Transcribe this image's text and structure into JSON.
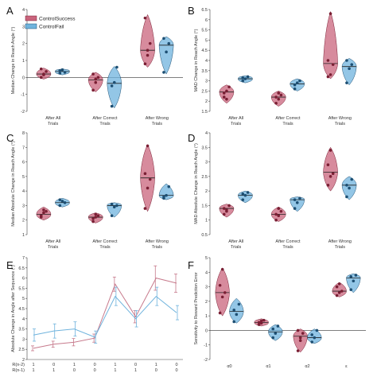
{
  "colors": {
    "success": "#c9647c",
    "success_dark": "#7a1f34",
    "fail": "#6fb3dd",
    "fail_dark": "#1d4f73",
    "line_success": "#c77a8c",
    "line_fail": "#6fb3dd"
  },
  "legend": {
    "success": "ControlSuccess",
    "fail": "ControlFail"
  },
  "chart_data": [
    {
      "id": "A",
      "panel": "A",
      "type": "violin",
      "ylabel": "Median Change in Reach Angle (°)",
      "ylim": [
        -2,
        4
      ],
      "yticks": [
        -2,
        -1,
        0,
        1,
        2,
        3,
        4
      ],
      "categories": [
        "After All Trials",
        "After Correct Trials",
        "After Wrong Trials"
      ],
      "zero_line": true,
      "series": [
        {
          "name": "ControlSuccess",
          "points": [
            [
              0.0,
              0.15,
              0.35,
              0.5,
              0.2
            ],
            [
              -0.75,
              -0.3,
              0.0,
              0.2,
              -0.1
            ],
            [
              0.8,
              1.3,
              2.0,
              3.5,
              1.6
            ]
          ],
          "median": [
            0.2,
            -0.15,
            1.6
          ],
          "range": [
            [
              -0.1,
              0.55
            ],
            [
              -0.85,
              0.3
            ],
            [
              0.6,
              3.7
            ]
          ]
        },
        {
          "name": "ControlFail",
          "points": [
            [
              0.25,
              0.45,
              0.3,
              0.4
            ],
            [
              -1.7,
              -0.3,
              0.6,
              -0.5
            ],
            [
              0.3,
              1.5,
              2.0,
              2.3
            ]
          ],
          "median": [
            0.35,
            -0.35,
            1.9
          ],
          "range": [
            [
              0.15,
              0.5
            ],
            [
              -1.8,
              0.65
            ],
            [
              0.2,
              2.4
            ]
          ]
        }
      ]
    },
    {
      "id": "B",
      "panel": "B",
      "type": "violin",
      "ylabel": "MAD Change in Reach Angle (°)",
      "ylim": [
        1.5,
        6.5
      ],
      "yticks": [
        1.5,
        2,
        2.5,
        3,
        3.5,
        4,
        4.5,
        5,
        5.5,
        6,
        6.5
      ],
      "categories": [
        "After All Trials",
        "After Correct Trials",
        "After Wrong Trials"
      ],
      "series": [
        {
          "name": "ControlSuccess",
          "points": [
            [
              2.2,
              2.5,
              2.7,
              2.4,
              2.1
            ],
            [
              1.9,
              2.1,
              2.3,
              2.2,
              2.4
            ],
            [
              3.2,
              3.3,
              3.8,
              4.0,
              6.3
            ]
          ],
          "median": [
            2.45,
            2.2,
            3.85
          ],
          "range": [
            [
              1.9,
              2.8
            ],
            [
              1.75,
              2.5
            ],
            [
              3.1,
              6.4
            ]
          ]
        },
        {
          "name": "ControlFail",
          "points": [
            [
              3.0,
              3.1,
              3.2,
              3.15
            ],
            [
              2.6,
              2.9,
              3.0,
              2.8
            ],
            [
              2.9,
              3.6,
              3.8,
              4.0
            ]
          ],
          "median": [
            3.1,
            2.85,
            3.7
          ],
          "range": [
            [
              2.9,
              3.25
            ],
            [
              2.5,
              3.1
            ],
            [
              2.8,
              4.1
            ]
          ]
        }
      ]
    },
    {
      "id": "C",
      "panel": "C",
      "type": "violin",
      "ylabel": "Median Absolute Change in Reach Angle (°)",
      "ylim": [
        1,
        8
      ],
      "yticks": [
        1,
        2,
        3,
        4,
        5,
        6,
        7,
        8
      ],
      "categories": [
        "After All Trials",
        "After Correct Trials",
        "After Wrong Trials"
      ],
      "series": [
        {
          "name": "ControlSuccess",
          "points": [
            [
              2.2,
              2.5,
              2.6,
              2.3,
              2.7
            ],
            [
              1.9,
              2.2,
              2.3,
              2.1,
              2.4
            ],
            [
              2.8,
              4.2,
              4.8,
              5.2,
              7.1
            ]
          ],
          "median": [
            2.4,
            2.2,
            4.9
          ],
          "range": [
            [
              2.0,
              2.9
            ],
            [
              1.8,
              2.5
            ],
            [
              2.6,
              7.2
            ]
          ]
        },
        {
          "name": "ControlFail",
          "points": [
            [
              3.0,
              3.3,
              3.2,
              3.4
            ],
            [
              2.3,
              2.9,
              3.0,
              3.1
            ],
            [
              3.5,
              3.7,
              4.3,
              3.6
            ]
          ],
          "median": [
            3.2,
            3.0,
            3.7
          ],
          "range": [
            [
              2.9,
              3.5
            ],
            [
              2.2,
              3.2
            ],
            [
              3.4,
              4.5
            ]
          ]
        }
      ]
    },
    {
      "id": "D",
      "panel": "D",
      "type": "violin",
      "ylabel": "MAD Absolute Change in Reach Angle (°)",
      "ylim": [
        0.5,
        4
      ],
      "yticks": [
        0.5,
        1,
        1.5,
        2,
        2.5,
        3,
        3.5,
        4
      ],
      "categories": [
        "After All Trials",
        "After Correct Trials",
        "After Wrong Trials"
      ],
      "series": [
        {
          "name": "ControlSuccess",
          "points": [
            [
              1.2,
              1.35,
              1.5,
              1.4,
              1.3
            ],
            [
              1.0,
              1.15,
              1.3,
              1.2,
              1.4
            ],
            [
              2.2,
              2.5,
              2.6,
              2.9,
              3.4
            ]
          ],
          "median": [
            1.4,
            1.2,
            2.65
          ],
          "range": [
            [
              1.1,
              1.55
            ],
            [
              0.95,
              1.45
            ],
            [
              2.0,
              3.5
            ]
          ]
        },
        {
          "name": "ControlFail",
          "points": [
            [
              1.7,
              1.85,
              1.95,
              1.9
            ],
            [
              1.4,
              1.6,
              1.75,
              1.7
            ],
            [
              1.8,
              2.1,
              2.4,
              2.2
            ]
          ],
          "median": [
            1.85,
            1.7,
            2.2
          ],
          "range": [
            [
              1.6,
              2.0
            ],
            [
              1.3,
              1.8
            ],
            [
              1.7,
              2.5
            ]
          ]
        }
      ]
    },
    {
      "id": "E",
      "panel": "E",
      "type": "line",
      "ylabel": "Absolute Change in Angle after Sequence (°)",
      "ylim": [
        2,
        7
      ],
      "yticks": [
        2,
        2.5,
        3,
        3.5,
        4,
        4.5,
        5,
        5.5,
        6,
        6.5,
        7
      ],
      "x": [
        1,
        2,
        3,
        4,
        5,
        6,
        7,
        8
      ],
      "row_labels": [
        "R(n-2)",
        "R(n-1)"
      ],
      "rows": [
        [
          "1",
          "0",
          "1",
          "0",
          "1",
          "0",
          "1",
          "0"
        ],
        [
          "1",
          "1",
          "0",
          "0",
          "1",
          "1",
          "0",
          "0"
        ]
      ],
      "series": [
        {
          "name": "ControlSuccess",
          "values": [
            2.55,
            2.75,
            2.85,
            3.05,
            5.7,
            4.1,
            6.0,
            5.75
          ],
          "errors": [
            0.12,
            0.15,
            0.18,
            0.2,
            0.35,
            0.3,
            0.6,
            0.45
          ]
        },
        {
          "name": "ControlFail",
          "values": [
            3.2,
            3.4,
            3.5,
            3.1,
            5.1,
            4.0,
            5.1,
            4.3
          ],
          "errors": [
            0.3,
            0.35,
            0.35,
            0.3,
            0.45,
            0.4,
            0.45,
            0.35
          ]
        }
      ]
    },
    {
      "id": "F",
      "panel": "F",
      "type": "violin",
      "ylabel": "Sensitivity to Reward Prediction Error",
      "ylim": [
        -2,
        5
      ],
      "yticks": [
        -2,
        -1,
        0,
        1,
        2,
        3,
        4,
        5
      ],
      "categories": [
        "α0",
        "α1",
        "α2",
        "ε"
      ],
      "zero_line": true,
      "series": [
        {
          "name": "ControlSuccess",
          "points": [
            [
              1.2,
              2.3,
              2.6,
              3.1,
              4.2
            ],
            [
              0.4,
              0.5,
              0.7,
              0.55,
              0.65
            ],
            [
              -1.4,
              -0.7,
              -0.2,
              0.0,
              -0.5
            ],
            [
              2.4,
              2.6,
              2.7,
              3.0,
              3.2
            ]
          ],
          "median": [
            2.6,
            0.55,
            -0.4,
            2.7
          ],
          "range": [
            [
              1.0,
              4.3
            ],
            [
              0.3,
              0.8
            ],
            [
              -1.5,
              0.1
            ],
            [
              2.3,
              3.3
            ]
          ]
        },
        {
          "name": "ControlFail",
          "points": [
            [
              0.6,
              1.1,
              1.8,
              1.4
            ],
            [
              -0.5,
              -0.2,
              0.3,
              0.1
            ],
            [
              -0.8,
              -0.5,
              0.0,
              -0.3
            ],
            [
              2.8,
              3.4,
              3.8,
              3.7
            ]
          ],
          "median": [
            1.3,
            -0.1,
            -0.5,
            3.6
          ],
          "range": [
            [
              0.5,
              2.2
            ],
            [
              -0.7,
              0.4
            ],
            [
              -0.9,
              0.1
            ],
            [
              2.6,
              3.9
            ]
          ]
        }
      ]
    }
  ]
}
